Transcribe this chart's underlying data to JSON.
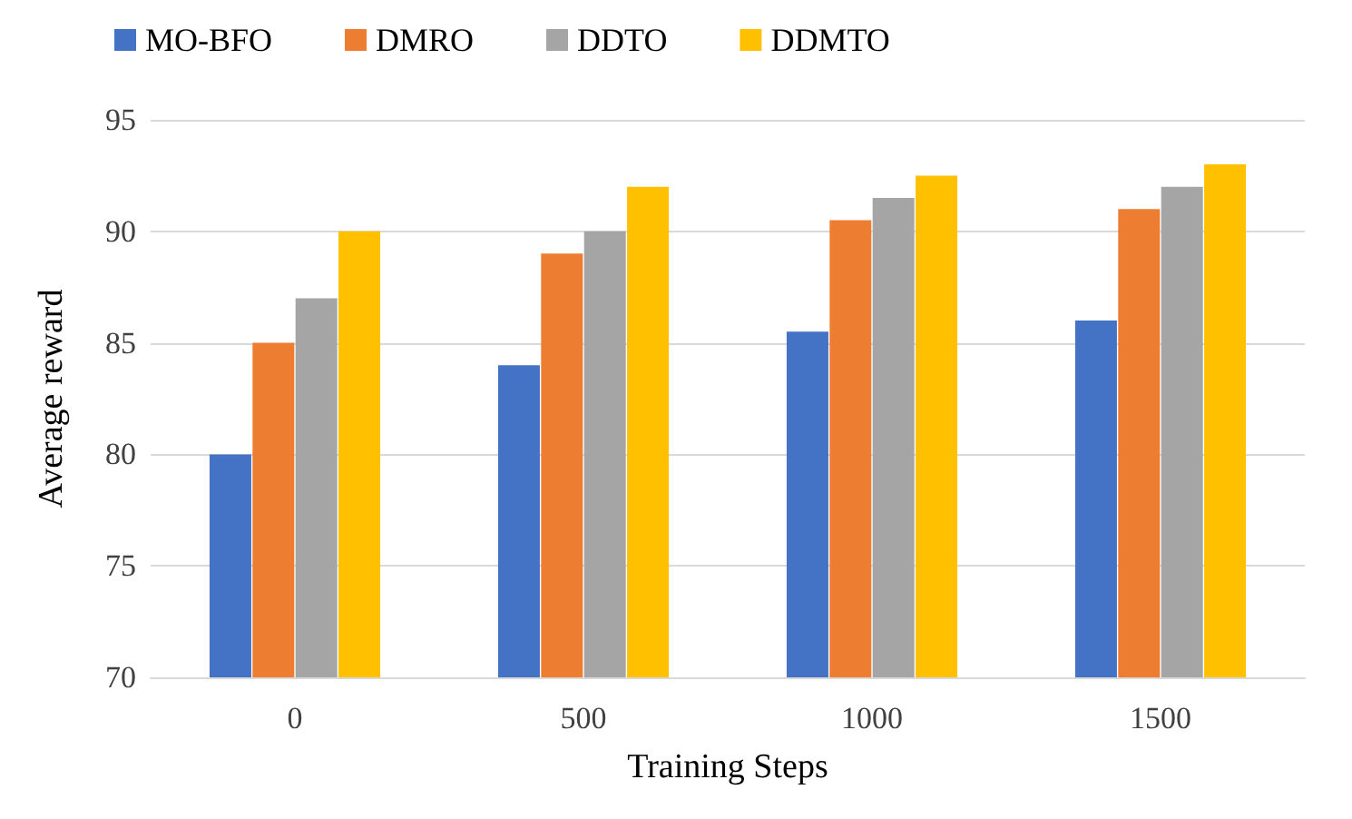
{
  "chart_data": {
    "type": "bar",
    "xlabel": "Training Steps",
    "ylabel": "Average reward",
    "categories": [
      "0",
      "500",
      "1000",
      "1500"
    ],
    "series": [
      {
        "name": "MO-BFO",
        "color": "#4472c4",
        "values": [
          80,
          84,
          85.5,
          86
        ]
      },
      {
        "name": "DMRO",
        "color": "#ed7d31",
        "values": [
          85,
          89,
          90.5,
          91
        ]
      },
      {
        "name": "DDTO",
        "color": "#a5a5a5",
        "values": [
          87,
          90,
          91.5,
          92
        ]
      },
      {
        "name": "DDMTO",
        "color": "#ffc000",
        "values": [
          90,
          92,
          92.5,
          93
        ]
      }
    ],
    "ylim": [
      70,
      95
    ],
    "yticks": [
      70,
      75,
      80,
      85,
      90,
      95
    ],
    "grid": "y",
    "legend": "top"
  }
}
